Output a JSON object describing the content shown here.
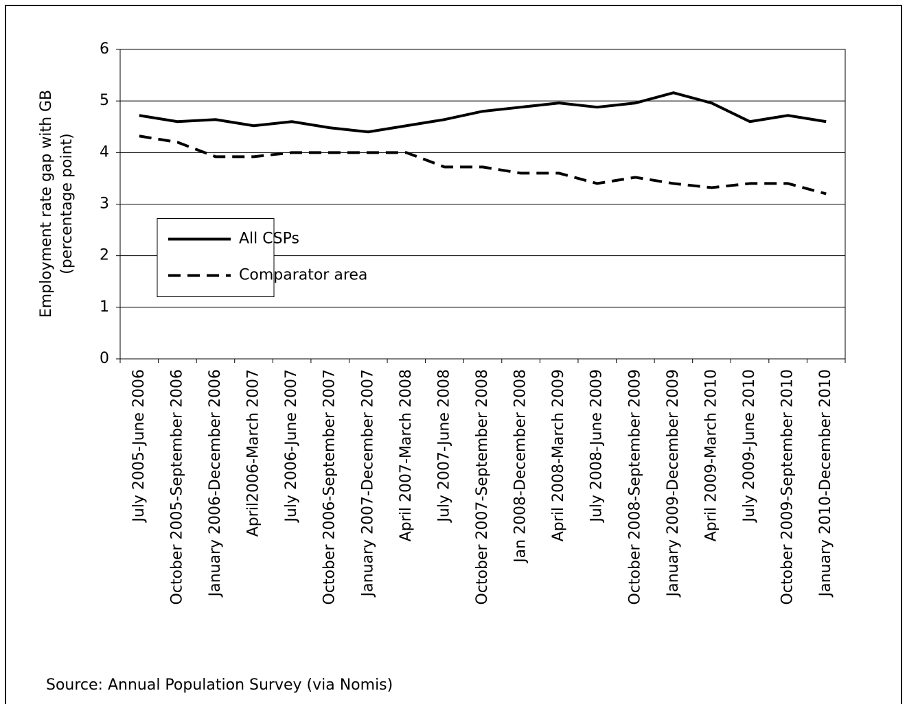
{
  "chart_data": {
    "type": "line",
    "ylabel": [
      "Employment rate gap with GB",
      "(percentage point)"
    ],
    "source": "Source: Annual Population Survey (via Nomis)",
    "categories": [
      "July 2005-June 2006",
      "October 2005-September 2006",
      "January 2006-December 2006",
      "April2006-March 2007",
      "July 2006-June 2007",
      "October 2006-September 2007",
      "January 2007-December 2007",
      "April 2007-March 2008",
      "July 2007-June 2008",
      "October 2007-September 2008",
      "Jan 2008-December 2008",
      "April 2008-March 2009",
      "July 2008-June 2009",
      "October 2008-September 2009",
      "January 2009-December 2009",
      "April 2009-March 2010",
      "July 2009-June 2010",
      "October 2009-September 2010",
      "January 2010-December 2010"
    ],
    "series": [
      {
        "name": "All CSPs",
        "color": "#000000",
        "style": "solid",
        "values": [
          4.72,
          4.6,
          4.64,
          4.52,
          4.6,
          4.48,
          4.4,
          4.52,
          4.64,
          4.8,
          4.88,
          4.96,
          4.88,
          4.96,
          5.16,
          4.96,
          4.6,
          4.72,
          4.6
        ]
      },
      {
        "name": "Comparator area",
        "color": "#000000",
        "style": "dashed",
        "values": [
          4.32,
          4.2,
          3.92,
          3.92,
          4.0,
          4.0,
          4.0,
          4.0,
          3.72,
          3.72,
          3.6,
          3.6,
          3.4,
          3.52,
          3.4,
          3.32,
          3.4,
          3.4,
          3.2
        ]
      }
    ],
    "ylim": [
      0,
      6
    ],
    "yticks": [
      0,
      1,
      2,
      3,
      4,
      5,
      6
    ],
    "grid": true,
    "legend": "center left"
  }
}
